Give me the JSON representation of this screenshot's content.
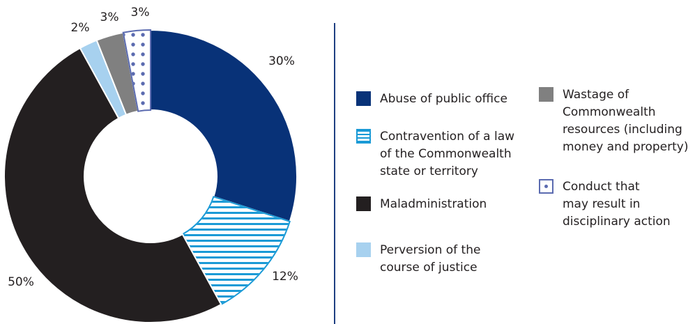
{
  "chart_data": {
    "type": "pie",
    "variant": "donut",
    "categories": [
      "Abuse of public office",
      "Contravention of a law of the Commonwealth state or territory",
      "Maladministration",
      "Perversion of the course of justice",
      "Wastage of Commonwealth resources (including money and property)",
      "Conduct that may result in disciplinary action"
    ],
    "values": [
      30,
      12,
      50,
      2,
      3,
      3
    ],
    "labels": [
      "30%",
      "12%",
      "50%",
      "2%",
      "3%",
      "3%"
    ],
    "colors": [
      "#083278",
      "#1a9ad6",
      "#231f20",
      "#a7d1ef",
      "#808080",
      "#5b6bb0"
    ],
    "patterns": [
      "solid",
      "horizontal-stripes",
      "solid",
      "solid",
      "solid",
      "dots"
    ],
    "legend_placement": "right"
  },
  "legend": {
    "items": [
      {
        "label": "Abuse of public office",
        "icon": "solid-navy-swatch"
      },
      {
        "label": "Contravention of a law\nof the Commonwealth\nstate or territory",
        "icon": "striped-blue-swatch"
      },
      {
        "label": "Maladministration",
        "icon": "solid-black-swatch"
      },
      {
        "label": "Perversion of the\ncourse of justice",
        "icon": "solid-light-blue-swatch"
      },
      {
        "label": "Wastage of\nCommonwealth\nresources (including\nmoney and property)",
        "icon": "solid-grey-swatch"
      },
      {
        "label": "Conduct that\nmay result in\ndisciplinary action",
        "icon": "dotted-swatch"
      }
    ]
  }
}
